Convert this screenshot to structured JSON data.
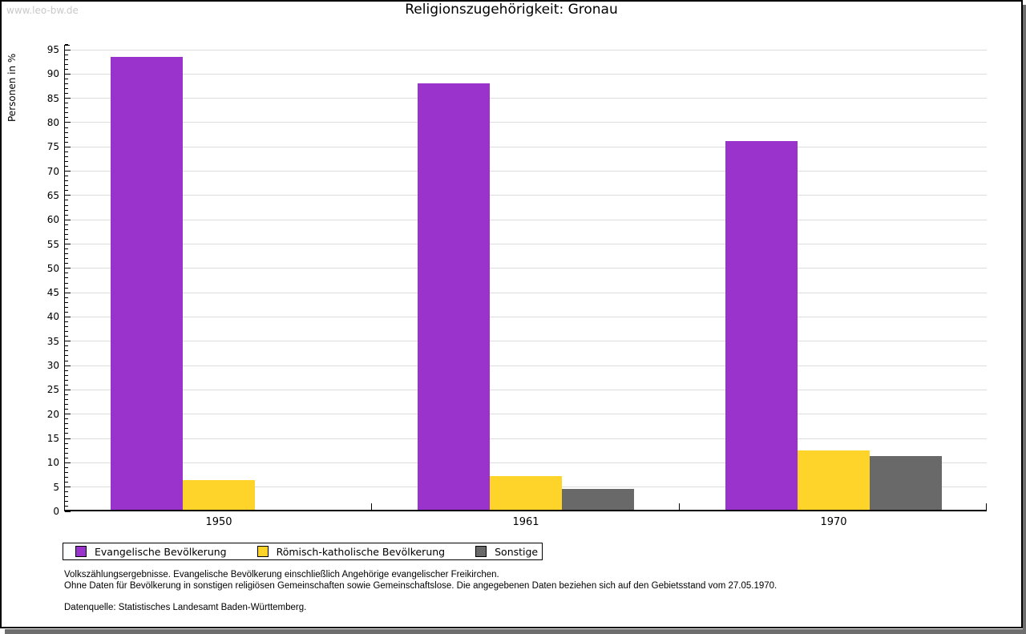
{
  "watermark": "www.leo-bw.de",
  "chart_data": {
    "type": "bar",
    "title": "Religionszugehörigkeit: Gronau",
    "ylabel": "Personen in %",
    "xlabel": "",
    "categories": [
      "1950",
      "1961",
      "1970"
    ],
    "series": [
      {
        "name": "Evangelische Bevölkerung",
        "color": "#9933cc",
        "values": [
          93.5,
          88.0,
          76.2
        ]
      },
      {
        "name": "Römisch-katholische Bevölkerung",
        "color": "#ffd42a",
        "values": [
          6.4,
          7.2,
          12.6
        ]
      },
      {
        "name": "Sonstige",
        "color": "#696969",
        "values": [
          0.3,
          4.7,
          11.3
        ]
      }
    ],
    "ylim": [
      0,
      95
    ],
    "ytick_step": 5,
    "ytick_minor_step": 1,
    "grid": true,
    "grid_color": "#dddddd",
    "legend_position": "bottom"
  },
  "footer": {
    "line1": "Volkszählungsergebnisse. Evangelische Bevölkerung einschließlich Angehörige evangelischer Freikirchen.",
    "line2": "Ohne Daten für Bevölkerung in sonstigen religiösen Gemeinschaften sowie Gemeinschaftslose. Die angegebenen Daten beziehen sich auf den Gebietsstand vom 27.05.1970.",
    "source": "Datenquelle: Statistisches Landesamt Baden-Württemberg."
  }
}
